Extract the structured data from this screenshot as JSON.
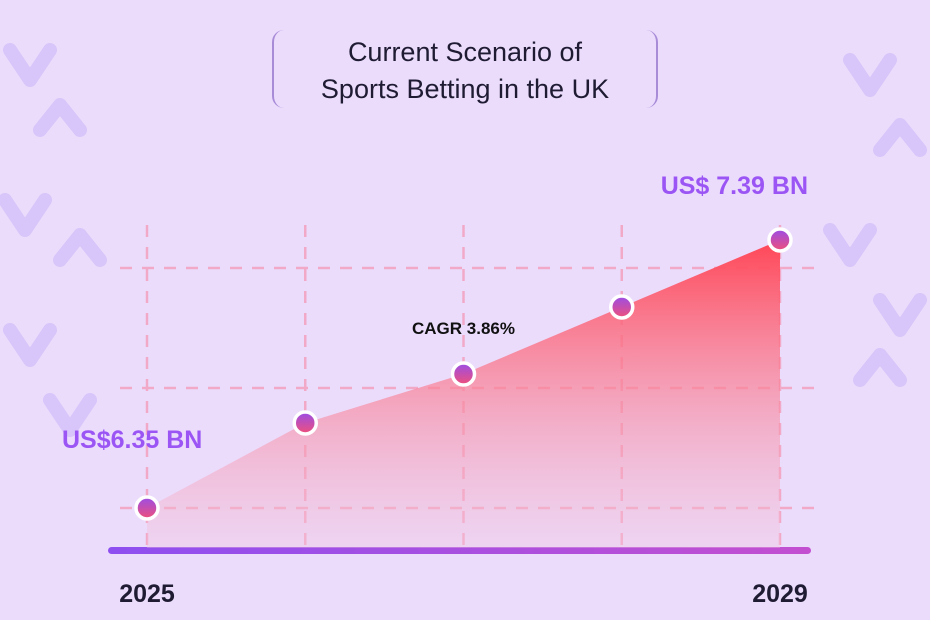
{
  "chart_data": {
    "type": "area",
    "title": "Current Scenario of Sports Betting in the UK",
    "categories": [
      "2025",
      null,
      null,
      null,
      "2029"
    ],
    "values": [
      6.35,
      6.68,
      6.87,
      7.13,
      7.39
    ],
    "value_labels": [
      "US$6.35 BN",
      null,
      null,
      null,
      "US$ 7.39 BN"
    ],
    "annotation": "CAGR 3.86%",
    "color": "#ff4656",
    "label_color": "#9b55f4",
    "grid": true
  }
}
